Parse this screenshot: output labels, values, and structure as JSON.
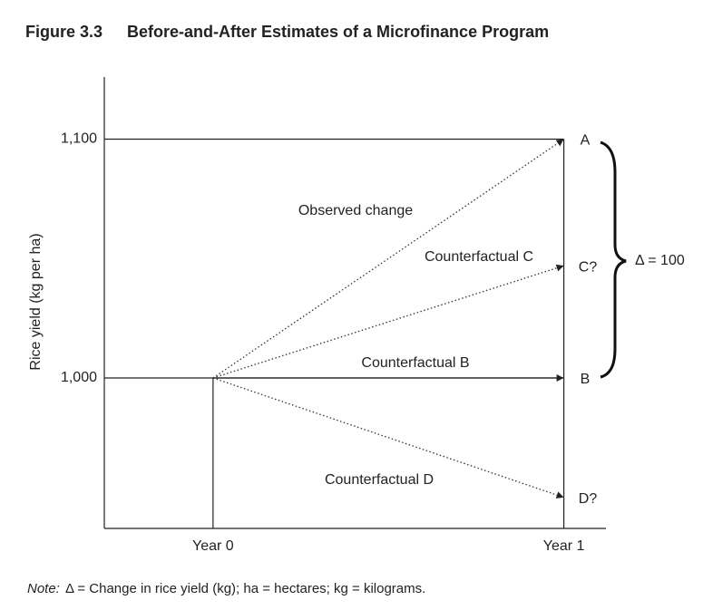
{
  "chart_data": {
    "type": "line",
    "figure_label": "Figure 3.3",
    "title": "Before-and-After Estimates of a Microfinance Program",
    "y_label": "Rice yield (kg per ha)",
    "x": [
      0,
      1
    ],
    "xlim": [
      -0.31,
      1.12
    ],
    "xticks": [
      {
        "value": 0,
        "label": "Year 0"
      },
      {
        "value": 1,
        "label": "Year 1"
      }
    ],
    "ylim": [
      937,
      1126
    ],
    "yticks": [
      {
        "value": 1000,
        "label": "1,000"
      },
      {
        "value": 1100,
        "label": "1,100"
      }
    ],
    "grid": true,
    "series": [
      {
        "name": "Observed change",
        "color": "#333333",
        "style": "dotted",
        "values": [
          1000,
          1100
        ],
        "end_label": "A"
      },
      {
        "name": "Counterfactual C",
        "color": "#333333",
        "style": "dotted",
        "values": [
          1000,
          1047
        ],
        "end_label": "C?"
      },
      {
        "name": "Counterfactual B",
        "color": "#222222",
        "style": "solid",
        "values": [
          1000,
          1000
        ],
        "end_label": "B"
      },
      {
        "name": "Counterfactual D",
        "color": "#333333",
        "style": "dotted",
        "values": [
          1000,
          950
        ],
        "end_label": "D?"
      }
    ],
    "brace_label": "Δ = 100",
    "note_prefix": "Note:",
    "note": "Δ = Change in rice yield (kg); ha = hectares; kg = kilograms."
  }
}
